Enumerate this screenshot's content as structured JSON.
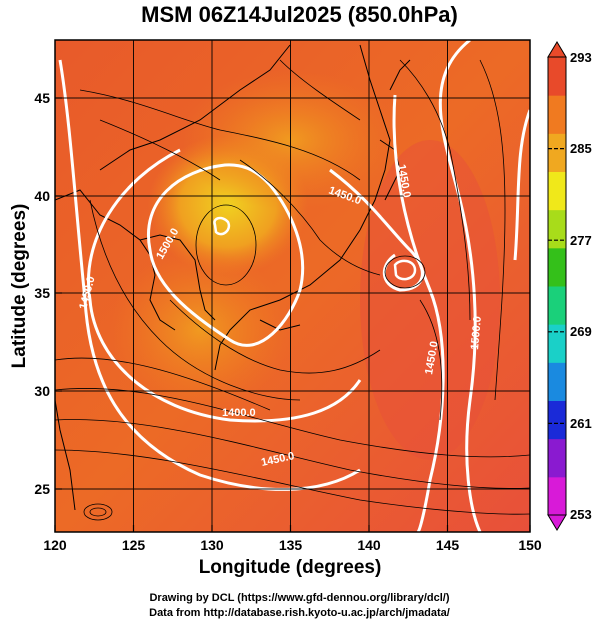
{
  "title": "MSM 06Z14Jul2025 (850.0hPa)",
  "axes": {
    "xlabel": "Longitude (degrees)",
    "ylabel": "Latitude  (degrees)",
    "xticks": [
      "120",
      "125",
      "130",
      "135",
      "140",
      "145",
      "150"
    ],
    "yticks": [
      "25",
      "30",
      "35",
      "40",
      "45"
    ]
  },
  "colorbar": {
    "labels": [
      "293",
      "285",
      "277",
      "269",
      "261",
      "253"
    ],
    "min": 253,
    "max": 293,
    "colors": [
      "#d81ad8",
      "#8a1ad0",
      "#1a2ad8",
      "#1a8ae0",
      "#1ad0c8",
      "#1ad07a",
      "#34c01a",
      "#a8dc1a",
      "#f0e81a",
      "#f0a820",
      "#f07a20",
      "#e84a2a"
    ]
  },
  "contour_labels": [
    "1400.0",
    "1450.0",
    "1450.0",
    "1450.0",
    "1500.0",
    "1450.0",
    "1450.0",
    "1500.0"
  ],
  "credits": {
    "line1": "Drawing by DCL (https://www.gfd-dennou.org/library/dcl/)",
    "line2": "Data from http://database.rish.kyoto-u.ac.jp/arch/jmadata/"
  },
  "chart_data": {
    "type": "heatmap",
    "title": "MSM 06Z14Jul2025 (850.0hPa)",
    "xlabel": "Longitude (degrees)",
    "ylabel": "Latitude  (degrees)",
    "xlim": [
      120,
      150
    ],
    "ylim": [
      22.4,
      47.6
    ],
    "color_range": [
      253,
      293
    ],
    "contours": [
      {
        "level": 1400,
        "label": "1400.0",
        "lon": 132.0,
        "lat": 29.3
      },
      {
        "level": 1450,
        "label": "1450.0",
        "lon": 122.6,
        "lat": 34.0
      },
      {
        "level": 1450,
        "label": "1450.0",
        "lon": 134.5,
        "lat": 26.5
      },
      {
        "level": 1450,
        "label": "1450.0",
        "lon": 138.2,
        "lat": 40.3
      },
      {
        "level": 1500,
        "label": "1500.0",
        "lon": 128.3,
        "lat": 38.5
      },
      {
        "level": 1450,
        "label": "1450.0",
        "lon": 140.7,
        "lat": 41.8
      },
      {
        "level": 1450,
        "label": "1450.0",
        "lon": 144.2,
        "lat": 32.5
      },
      {
        "level": 1500,
        "label": "1500.0",
        "lon": 146.6,
        "lat": 33.0
      }
    ]
  }
}
